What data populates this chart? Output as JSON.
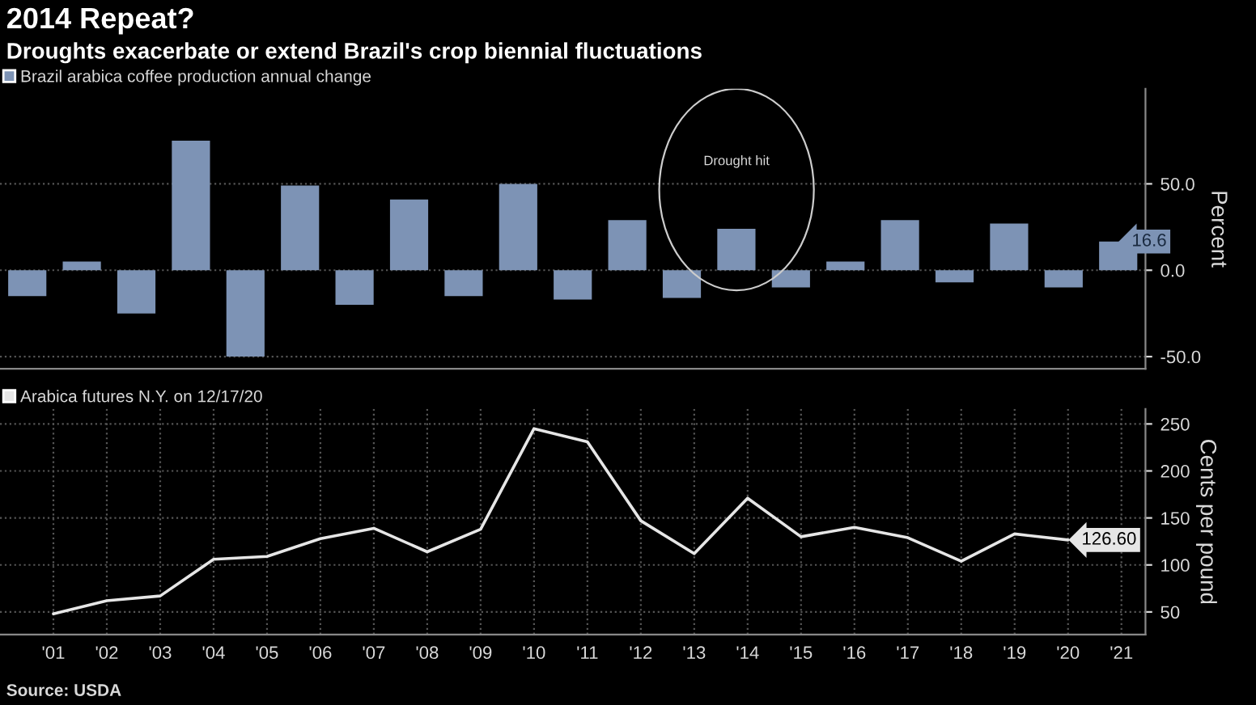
{
  "chart_data": [
    {
      "type": "bar",
      "title": "2014 Repeat?",
      "subtitle": "Droughts exacerbate or extend Brazil's crop biennial fluctuations",
      "ylabel": "Percent",
      "categories": [
        null,
        null,
        null,
        null,
        null,
        null,
        null,
        null,
        null,
        null,
        null,
        null,
        null,
        null,
        null,
        null,
        null,
        null,
        null,
        null,
        null
      ],
      "series": [
        {
          "name": "Brazil arabica coffee production annual change",
          "color": "#7d93b5",
          "values": [
            -15,
            5,
            -25,
            75,
            -50,
            49,
            -20,
            41,
            -15,
            50,
            -17,
            29,
            -16,
            24,
            -10,
            5,
            29,
            -7,
            27,
            -10,
            16.6
          ],
          "value_labels": [
            null,
            null,
            null,
            null,
            null,
            null,
            null,
            null,
            null,
            null,
            null,
            null,
            null,
            null,
            null,
            null,
            null,
            null,
            null,
            null,
            "16.6"
          ]
        }
      ],
      "ylim": [
        -57,
        105
      ],
      "yticks": [
        {
          "value": -50,
          "label": "-50.0"
        },
        {
          "value": 0,
          "label": "0.0"
        },
        {
          "value": 50,
          "label": "50.0"
        }
      ],
      "grid": "y",
      "legend": "top left",
      "tick_labels": "y",
      "annotations": [
        "Drought hit"
      ]
    },
    {
      "type": "line",
      "ylabel": "Cents per pound",
      "x": [
        2001,
        2002,
        2003,
        2004,
        2005,
        2006,
        2007,
        2008,
        2009,
        2010,
        2011,
        2012,
        2013,
        2014,
        2015,
        2016,
        2017,
        2018,
        2019,
        2020
      ],
      "series": [
        {
          "name": "Arabica futures N.Y. on 12/17/20",
          "color": "#e6e6e6",
          "values": [
            48,
            62,
            67,
            106,
            109,
            128,
            139,
            114,
            138,
            245,
            231,
            147,
            112,
            171,
            130,
            140,
            129,
            104,
            133,
            126.6
          ],
          "value_labels": [
            null,
            null,
            null,
            null,
            null,
            null,
            null,
            null,
            null,
            null,
            null,
            null,
            null,
            null,
            null,
            null,
            null,
            null,
            null,
            "126.60"
          ]
        }
      ],
      "xlim": [
        2000,
        2021.45
      ],
      "xticks": [
        {
          "value": 2001,
          "label": "'01"
        },
        {
          "value": 2002,
          "label": "'02"
        },
        {
          "value": 2003,
          "label": "'03"
        },
        {
          "value": 2004,
          "label": "'04"
        },
        {
          "value": 2005,
          "label": "'05"
        },
        {
          "value": 2006,
          "label": "'06"
        },
        {
          "value": 2007,
          "label": "'07"
        },
        {
          "value": 2008,
          "label": "'08"
        },
        {
          "value": 2009,
          "label": "'09"
        },
        {
          "value": 2010,
          "label": "'10"
        },
        {
          "value": 2011,
          "label": "'11"
        },
        {
          "value": 2012,
          "label": "'12"
        },
        {
          "value": 2013,
          "label": "'13"
        },
        {
          "value": 2014,
          "label": "'14"
        },
        {
          "value": 2015,
          "label": "'15"
        },
        {
          "value": 2016,
          "label": "'16"
        },
        {
          "value": 2017,
          "label": "'17"
        },
        {
          "value": 2018,
          "label": "'18"
        },
        {
          "value": 2019,
          "label": "'19"
        },
        {
          "value": 2020,
          "label": "'20"
        },
        {
          "value": 2021,
          "label": "'21"
        }
      ],
      "ylim": [
        26,
        266
      ],
      "yticks": [
        50,
        100,
        150,
        200,
        250
      ],
      "grid": true,
      "legend": "top left",
      "marker": "none",
      "line_style": "solid",
      "annotations": [
        "Source: USDA"
      ]
    }
  ]
}
